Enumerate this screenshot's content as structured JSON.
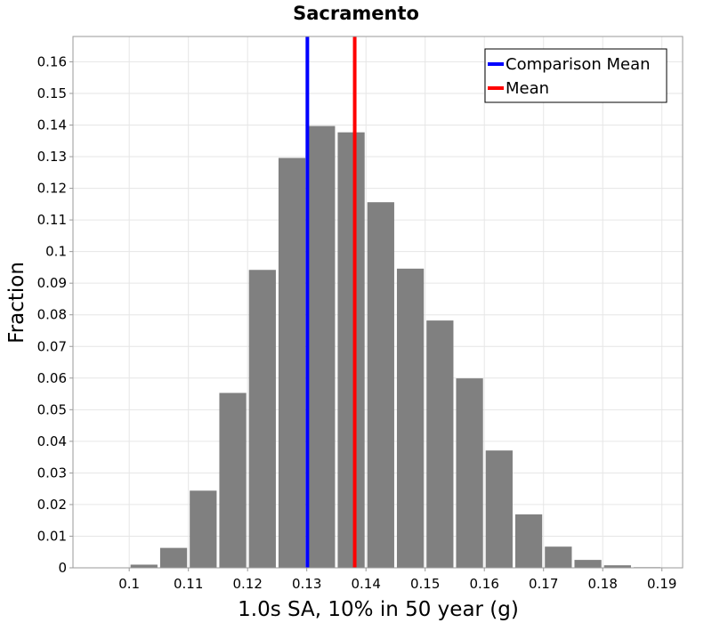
{
  "chart_data": {
    "type": "bar",
    "title": "Sacramento",
    "xlabel": "1.0s SA, 10% in 50 year (g)",
    "ylabel": "Fraction",
    "xlim": [
      0.0905,
      0.1935
    ],
    "ylim": [
      0,
      0.168
    ],
    "x_ticks": [
      0.1,
      0.11,
      0.12,
      0.13,
      0.14,
      0.15,
      0.16,
      0.17,
      0.18,
      0.19
    ],
    "x_tick_labels": [
      "0.1",
      "0.11",
      "0.12",
      "0.13",
      "0.14",
      "0.15",
      "0.16",
      "0.17",
      "0.18",
      "0.19"
    ],
    "y_ticks": [
      0,
      0.01,
      0.02,
      0.03,
      0.04,
      0.05,
      0.06,
      0.07,
      0.08,
      0.09,
      0.1,
      0.11,
      0.12,
      0.13,
      0.14,
      0.15,
      0.16
    ],
    "y_tick_labels": [
      "0",
      "0.01",
      "0.02",
      "0.03",
      "0.04",
      "0.05",
      "0.06",
      "0.07",
      "0.08",
      "0.09",
      "0.1",
      "0.11",
      "0.12",
      "0.13",
      "0.14",
      "0.15",
      "0.16"
    ],
    "bin_width": 0.005,
    "bin_centers": [
      0.1025,
      0.1075,
      0.1125,
      0.1175,
      0.1225,
      0.1275,
      0.1325,
      0.1375,
      0.1425,
      0.1475,
      0.1525,
      0.1575,
      0.1625,
      0.1675,
      0.1725,
      0.1775,
      0.1825,
      0.1875
    ],
    "values": [
      0.001,
      0.0063,
      0.0244,
      0.0553,
      0.0942,
      0.1296,
      0.1397,
      0.1377,
      0.1156,
      0.0946,
      0.0782,
      0.0599,
      0.0371,
      0.0169,
      0.0067,
      0.0025,
      0.0008,
      0.0002
    ],
    "bar_color": "#808080",
    "grid": true,
    "vertical_lines": [
      {
        "name": "Comparison Mean",
        "x": 0.1301,
        "color": "#0000ff"
      },
      {
        "name": "Mean",
        "x": 0.1381,
        "color": "#ff0000"
      }
    ],
    "legend": {
      "placement": "top-right",
      "entries": [
        "Comparison Mean",
        "Mean"
      ]
    }
  }
}
